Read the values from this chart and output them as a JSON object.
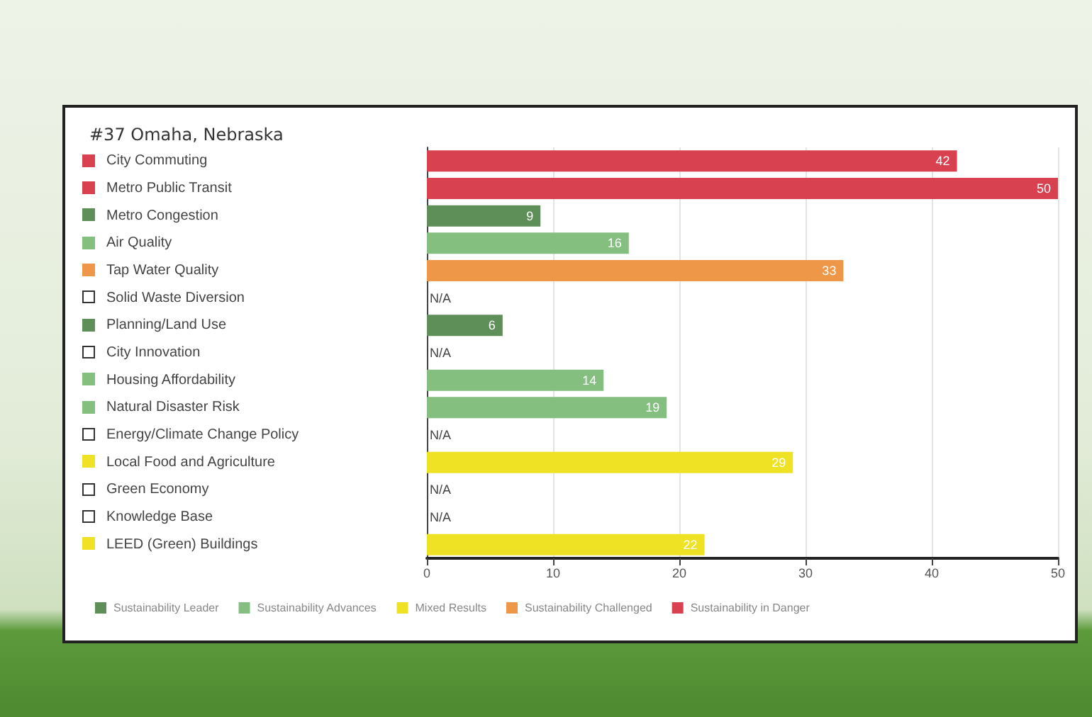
{
  "chart_data": {
    "type": "bar",
    "orientation": "horizontal",
    "title": "#37 Omaha, Nebraska",
    "categories": [
      "City Commuting",
      "Metro Public Transit",
      "Metro Congestion",
      "Air Quality",
      "Tap Water Quality",
      "Solid Waste Diversion",
      "Planning/Land Use",
      "City Innovation",
      "Housing Affordability",
      "Natural Disaster Risk",
      "Energy/Climate Change Policy",
      "Local Food and Agriculture",
      "Green Economy",
      "Knowledge Base",
      "LEED (Green) Buildings"
    ],
    "series": [
      {
        "name": "Sustainability Leader",
        "color": "#5e8f58",
        "values": [
          null,
          null,
          9,
          null,
          null,
          null,
          6,
          null,
          null,
          null,
          null,
          null,
          null,
          null,
          null
        ]
      },
      {
        "name": "Sustainability Advances",
        "color": "#84bf80",
        "values": [
          null,
          null,
          null,
          16,
          null,
          null,
          null,
          null,
          14,
          19,
          null,
          null,
          null,
          null,
          null
        ]
      },
      {
        "name": "Mixed Results",
        "color": "#efe124",
        "values": [
          null,
          null,
          null,
          null,
          null,
          null,
          null,
          null,
          null,
          null,
          null,
          29,
          null,
          null,
          22
        ]
      },
      {
        "name": "Sustainability Challenged",
        "color": "#ef9748",
        "values": [
          null,
          null,
          null,
          null,
          33,
          null,
          null,
          null,
          null,
          null,
          null,
          null,
          null,
          null,
          null
        ]
      },
      {
        "name": "Sustainability in Danger",
        "color": "#d8414f",
        "values": [
          42,
          50,
          null,
          null,
          null,
          null,
          null,
          null,
          null,
          null,
          null,
          null,
          null,
          null,
          null
        ]
      }
    ],
    "annotations": [
      "N/A",
      "N/A",
      "N/A",
      "N/A",
      "N/A"
    ],
    "xlim": [
      0,
      50
    ],
    "xticks": [
      0,
      10,
      20,
      30,
      40,
      50
    ],
    "grid": "x",
    "legend": "bottom",
    "data_labels": true
  }
}
